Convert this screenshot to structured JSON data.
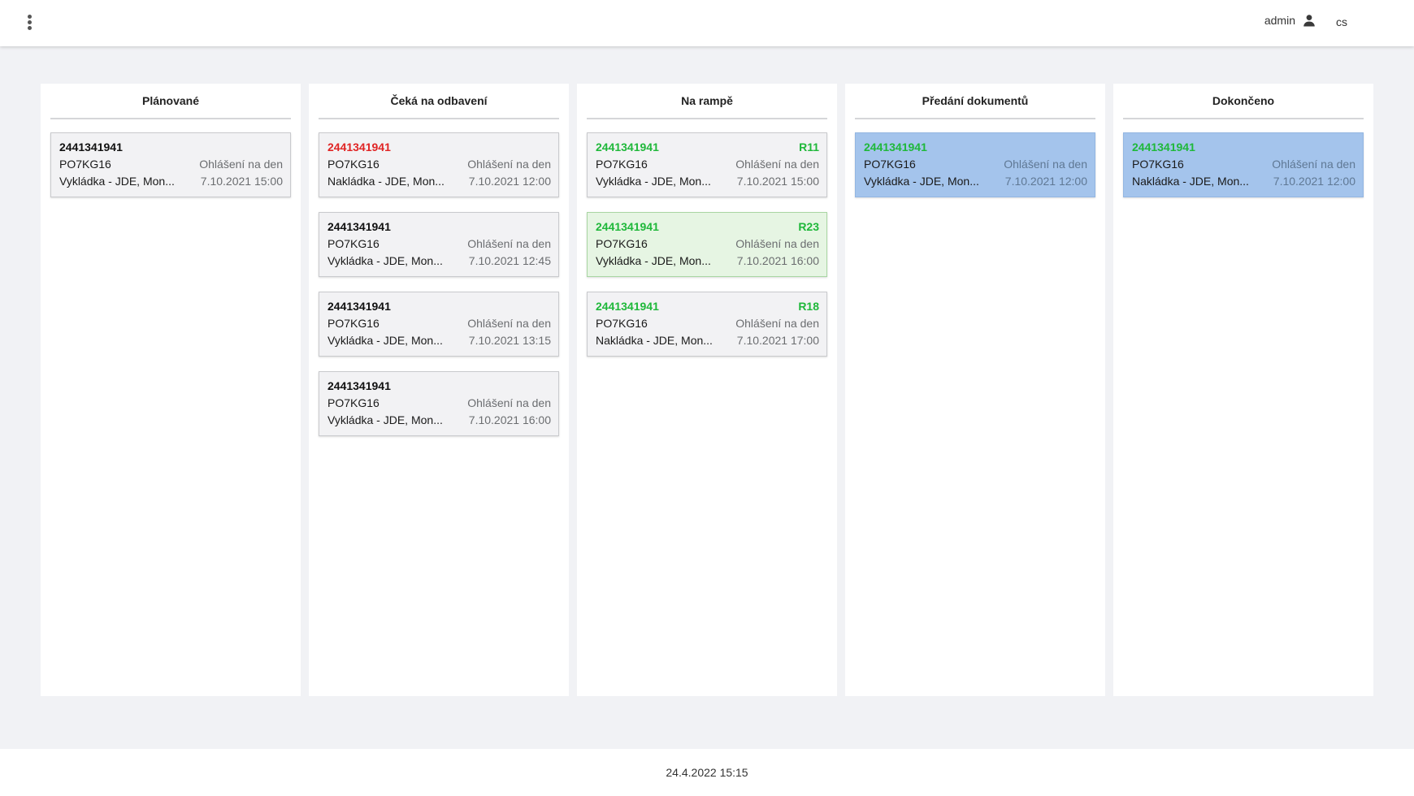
{
  "header": {
    "user": "admin",
    "language": "cs"
  },
  "columns": [
    {
      "title": "Plánované",
      "cards": [
        {
          "id": "2441341941",
          "id_color": "default",
          "ramp": "",
          "plate": "PO7KG16",
          "status": "Ohlášení na den",
          "task": "Vykládka - JDE, Mon...",
          "datetime": "7.10.2021 15:00",
          "bg": "default"
        }
      ]
    },
    {
      "title": "Čeká na odbavení",
      "cards": [
        {
          "id": "2441341941",
          "id_color": "red",
          "ramp": "",
          "plate": "PO7KG16",
          "status": "Ohlášení na den",
          "task": "Nakládka  - JDE, Mon...",
          "datetime": "7.10.2021 12:00",
          "bg": "default"
        },
        {
          "id": "2441341941",
          "id_color": "default",
          "ramp": "",
          "plate": "PO7KG16",
          "status": "Ohlášení na den",
          "task": "Vykládka - JDE, Mon...",
          "datetime": "7.10.2021 12:45",
          "bg": "default"
        },
        {
          "id": "2441341941",
          "id_color": "default",
          "ramp": "",
          "plate": "PO7KG16",
          "status": "Ohlášení na den",
          "task": "Vykládka - JDE, Mon...",
          "datetime": "7.10.2021 13:15",
          "bg": "default"
        },
        {
          "id": "2441341941",
          "id_color": "default",
          "ramp": "",
          "plate": "PO7KG16",
          "status": "Ohlášení na den",
          "task": "Vykládka - JDE, Mon...",
          "datetime": "7.10.2021 16:00",
          "bg": "default"
        }
      ]
    },
    {
      "title": "Na rampě",
      "cards": [
        {
          "id": "2441341941",
          "id_color": "green",
          "ramp": "R11",
          "plate": "PO7KG16",
          "status": "Ohlášení na den",
          "task": "Vykládka - JDE, Mon...",
          "datetime": "7.10.2021 15:00",
          "bg": "default"
        },
        {
          "id": "2441341941",
          "id_color": "green",
          "ramp": "R23",
          "plate": "PO7KG16",
          "status": "Ohlášení na den",
          "task": "Vykládka - JDE, Mon...",
          "datetime": "7.10.2021 16:00",
          "bg": "green"
        },
        {
          "id": "2441341941",
          "id_color": "green",
          "ramp": "R18",
          "plate": "PO7KG16",
          "status": "Ohlášení na den",
          "task": "Nakládka - JDE, Mon...",
          "datetime": "7.10.2021 17:00",
          "bg": "default"
        }
      ]
    },
    {
      "title": "Předání dokumentů",
      "cards": [
        {
          "id": "2441341941",
          "id_color": "green",
          "ramp": "",
          "plate": "PO7KG16",
          "status": "Ohlášení na den",
          "task": "Vykládka - JDE, Mon...",
          "datetime": "7.10.2021 12:00",
          "bg": "blue"
        }
      ]
    },
    {
      "title": "Dokončeno",
      "cards": [
        {
          "id": "2441341941",
          "id_color": "green",
          "ramp": "",
          "plate": "PO7KG16",
          "status": "Ohlášení na den",
          "task": "Nakládka - JDE, Mon...",
          "datetime": "7.10.2021 12:00",
          "bg": "blue"
        }
      ]
    }
  ],
  "footer": {
    "datetime": "24.4.2022 15:15"
  }
}
